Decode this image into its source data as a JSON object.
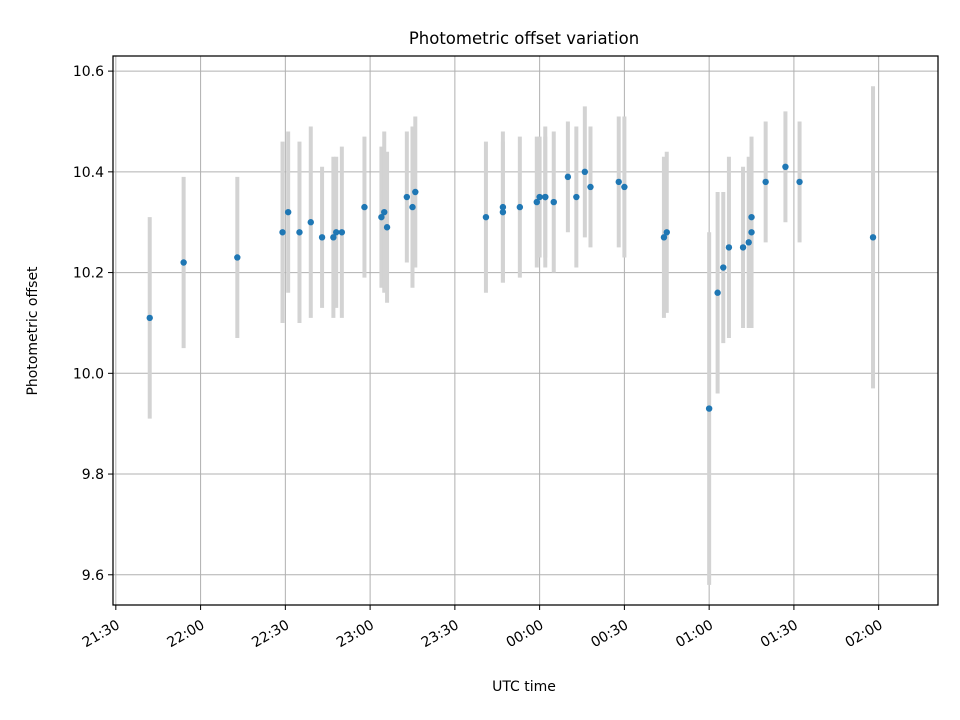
{
  "chart_data": {
    "type": "scatter",
    "title": "Photometric offset variation",
    "xlabel": "UTC time",
    "ylabel": "Photometric offset",
    "x_axis_kind": "time",
    "xlim": [
      "21:29",
      "02:21"
    ],
    "ylim": [
      9.54,
      10.63
    ],
    "grid": true,
    "x_ticks": [
      "21:30",
      "22:00",
      "22:30",
      "23:00",
      "23:30",
      "00:00",
      "00:30",
      "01:00",
      "01:30",
      "02:00"
    ],
    "y_ticks": [
      9.6,
      9.8,
      10.0,
      10.2,
      10.4,
      10.6
    ],
    "y_tick_labels": [
      "9.6",
      "9.8",
      "10.0",
      "10.2",
      "10.4",
      "10.6"
    ],
    "colors": {
      "points": "#1f77b4",
      "error_bars": "#d3d3d3",
      "grid": "#b0b0b0"
    },
    "series": [
      {
        "x": [
          "21:42",
          "21:54",
          "22:13",
          "22:29",
          "22:31",
          "22:35",
          "22:39",
          "22:43",
          "22:47",
          "22:48",
          "22:50",
          "22:58",
          "23:04",
          "23:05",
          "23:06",
          "23:13",
          "23:15",
          "23:16",
          "23:41",
          "23:47",
          "23:47",
          "23:53",
          "23:59",
          "00:00",
          "00:02",
          "00:02",
          "00:05",
          "00:10",
          "00:13",
          "00:16",
          "00:18",
          "00:28",
          "00:30",
          "00:44",
          "00:45",
          "01:00",
          "01:03",
          "01:05",
          "01:07",
          "01:12",
          "01:14",
          "01:15",
          "01:15",
          "01:20",
          "01:27",
          "01:32",
          "01:58"
        ],
        "y": [
          10.11,
          10.22,
          10.23,
          10.28,
          10.32,
          10.28,
          10.3,
          10.27,
          10.27,
          10.28,
          10.28,
          10.33,
          10.31,
          10.32,
          10.29,
          10.35,
          10.33,
          10.36,
          10.31,
          10.32,
          10.33,
          10.33,
          10.34,
          10.35,
          10.35,
          10.35,
          10.34,
          10.39,
          10.35,
          10.4,
          10.37,
          10.38,
          10.37,
          10.27,
          10.28,
          9.93,
          10.16,
          10.21,
          10.25,
          10.25,
          10.26,
          10.28,
          10.31,
          10.38,
          10.41,
          10.38,
          10.27
        ],
        "yerr": [
          0.2,
          0.17,
          0.16,
          0.18,
          0.16,
          0.18,
          0.19,
          0.14,
          0.16,
          0.15,
          0.17,
          0.14,
          0.14,
          0.16,
          0.15,
          0.13,
          0.16,
          0.15,
          0.15,
          0.14,
          0.15,
          0.14,
          0.13,
          0.12,
          0.14,
          0.12,
          0.14,
          0.11,
          0.14,
          0.13,
          0.12,
          0.13,
          0.14,
          0.16,
          0.16,
          0.35,
          0.2,
          0.15,
          0.18,
          0.16,
          0.17,
          0.19,
          0.14,
          0.12,
          0.11,
          0.12,
          0.3
        ]
      }
    ]
  }
}
